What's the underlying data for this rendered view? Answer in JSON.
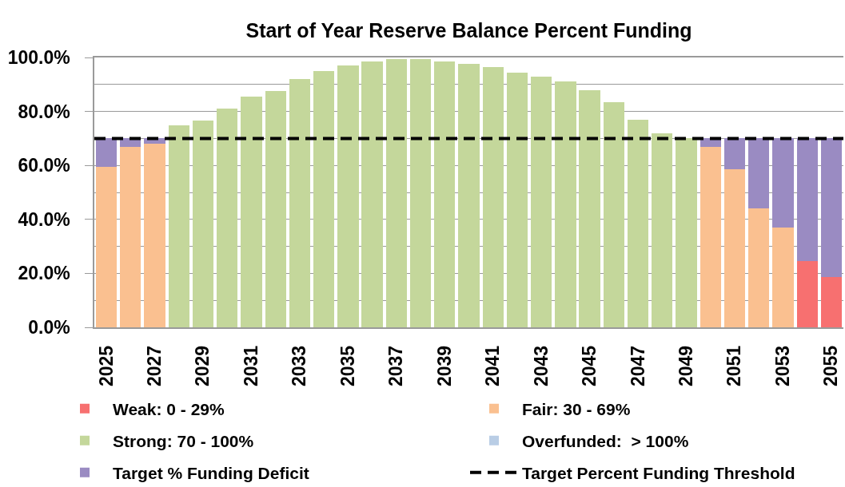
{
  "chart_data": {
    "type": "bar",
    "title": "Start of Year Reserve Balance Percent Funding",
    "categories": [
      "2025",
      null,
      "2027",
      null,
      "2029",
      null,
      "2031",
      null,
      "2033",
      null,
      "2035",
      null,
      "2037",
      null,
      "2039",
      null,
      "2041",
      null,
      "2043",
      null,
      "2045",
      null,
      "2047",
      null,
      "2049",
      null,
      "2051",
      null,
      "2053",
      null,
      "2055"
    ],
    "stacked": true,
    "series": [
      {
        "name": "Weak: 0 - 29%",
        "color": "#f77070",
        "values": [
          null,
          null,
          null,
          null,
          null,
          null,
          null,
          null,
          null,
          null,
          null,
          null,
          null,
          null,
          null,
          null,
          null,
          null,
          null,
          null,
          null,
          null,
          null,
          null,
          null,
          null,
          null,
          null,
          null,
          24.5,
          18.5
        ]
      },
      {
        "name": "Fair: 30 - 69%",
        "color": "#fac090",
        "values": [
          59.5,
          67,
          68,
          null,
          null,
          null,
          null,
          null,
          null,
          null,
          null,
          null,
          null,
          null,
          null,
          null,
          null,
          null,
          null,
          null,
          null,
          null,
          null,
          null,
          null,
          67,
          58.5,
          44,
          37,
          null,
          null
        ]
      },
      {
        "name": "Strong: 70 - 100%",
        "color": "#c4d79b",
        "values": [
          null,
          null,
          null,
          75,
          76.5,
          81,
          85.5,
          87.5,
          92,
          95,
          97,
          98.5,
          99.5,
          99.5,
          98.5,
          97.5,
          96.5,
          94.5,
          93,
          91,
          88,
          83.5,
          77,
          72,
          70,
          null,
          null,
          null,
          null,
          null,
          null
        ]
      },
      {
        "name": "Overfunded:  > 100%",
        "color": "#b9cde5",
        "values": [
          null,
          null,
          null,
          null,
          null,
          null,
          null,
          null,
          null,
          null,
          null,
          null,
          null,
          null,
          null,
          null,
          null,
          null,
          null,
          null,
          null,
          null,
          null,
          null,
          null,
          null,
          null,
          null,
          null,
          null,
          null
        ]
      },
      {
        "name": "Target % Funding Deficit",
        "color": "#9a8bc2",
        "values": [
          10.5,
          3,
          2,
          null,
          null,
          null,
          null,
          null,
          null,
          null,
          null,
          null,
          null,
          null,
          null,
          null,
          null,
          null,
          null,
          null,
          null,
          null,
          null,
          null,
          null,
          3,
          11.5,
          26,
          33,
          45.5,
          51.5
        ]
      }
    ],
    "ref_lines": [
      {
        "axis": "y",
        "value": 70,
        "label": "Target Percent Funding Threshold",
        "color": "#000000",
        "line_style": "dashed"
      }
    ],
    "ylim": [
      0,
      100
    ],
    "yticks": [
      {
        "value": 0,
        "label": "0.0%"
      },
      {
        "value": 10,
        "label": null
      },
      {
        "value": 20,
        "label": "20.0%"
      },
      {
        "value": 30,
        "label": null
      },
      {
        "value": 40,
        "label": "40.0%"
      },
      {
        "value": 50,
        "label": null
      },
      {
        "value": 60,
        "label": "60.0%"
      },
      {
        "value": 70,
        "label": null
      },
      {
        "value": 80,
        "label": "80.0%"
      },
      {
        "value": 90,
        "label": null
      },
      {
        "value": 100,
        "label": "100.0%"
      }
    ],
    "grid": "y",
    "legend": "bottom"
  }
}
